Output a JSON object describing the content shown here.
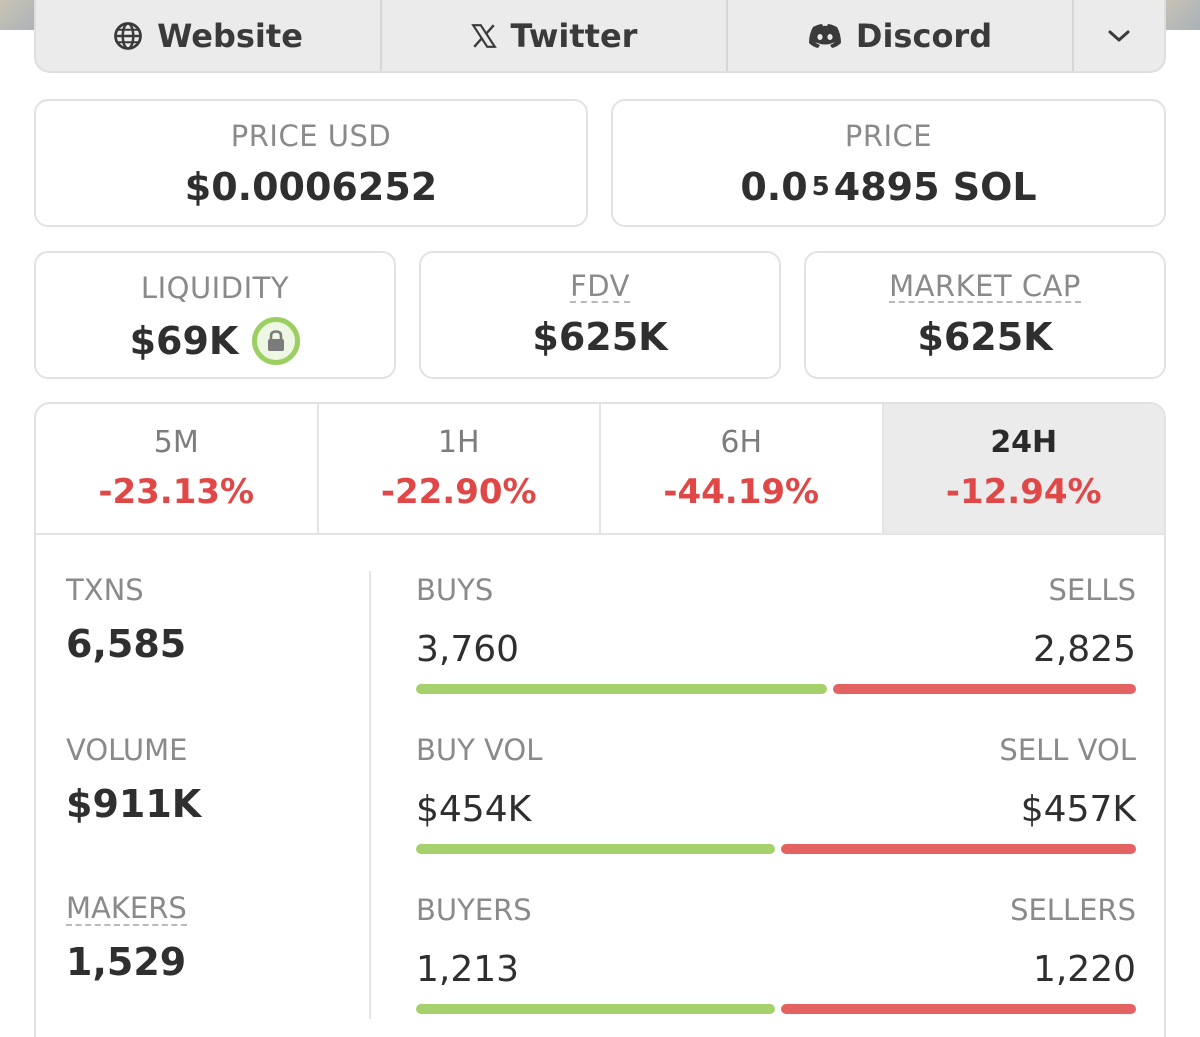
{
  "links": {
    "website": "Website",
    "twitter": "Twitter",
    "discord": "Discord"
  },
  "price_usd": {
    "label": "PRICE USD",
    "value": "$0.0006252"
  },
  "price_sol": {
    "label": "PRICE",
    "prefix": "0.0",
    "zeros": "5",
    "digits": "4895 SOL"
  },
  "liquidity": {
    "label": "LIQUIDITY",
    "value": "$69K"
  },
  "fdv": {
    "label": "FDV",
    "value": "$625K"
  },
  "market_cap": {
    "label": "MARKET CAP",
    "value": "$625K"
  },
  "periods": [
    {
      "label": "5M",
      "change": "-23.13%"
    },
    {
      "label": "1H",
      "change": "-22.90%"
    },
    {
      "label": "6H",
      "change": "-44.19%"
    },
    {
      "label": "24H",
      "change": "-12.94%"
    }
  ],
  "active_period": "24H",
  "stats": {
    "txns": {
      "label": "TXNS",
      "value": "6,585"
    },
    "volume": {
      "label": "VOLUME",
      "value": "$911K"
    },
    "makers": {
      "label": "MAKERS",
      "value": "1,529"
    }
  },
  "splits": {
    "txns": {
      "left_label": "BUYS",
      "left_value": "3,760",
      "right_label": "SELLS",
      "right_value": "2,825",
      "buy_fraction": 0.571
    },
    "volume": {
      "left_label": "BUY VOL",
      "left_value": "$454K",
      "right_label": "SELL VOL",
      "right_value": "$457K",
      "buy_fraction": 0.498
    },
    "makers": {
      "left_label": "BUYERS",
      "left_value": "1,213",
      "right_label": "SELLERS",
      "right_value": "1,220",
      "buy_fraction": 0.499
    }
  },
  "colors": {
    "negative": "#e04848",
    "buy": "#a6d06c",
    "sell": "#e46262",
    "lock": "#9bcf62"
  }
}
